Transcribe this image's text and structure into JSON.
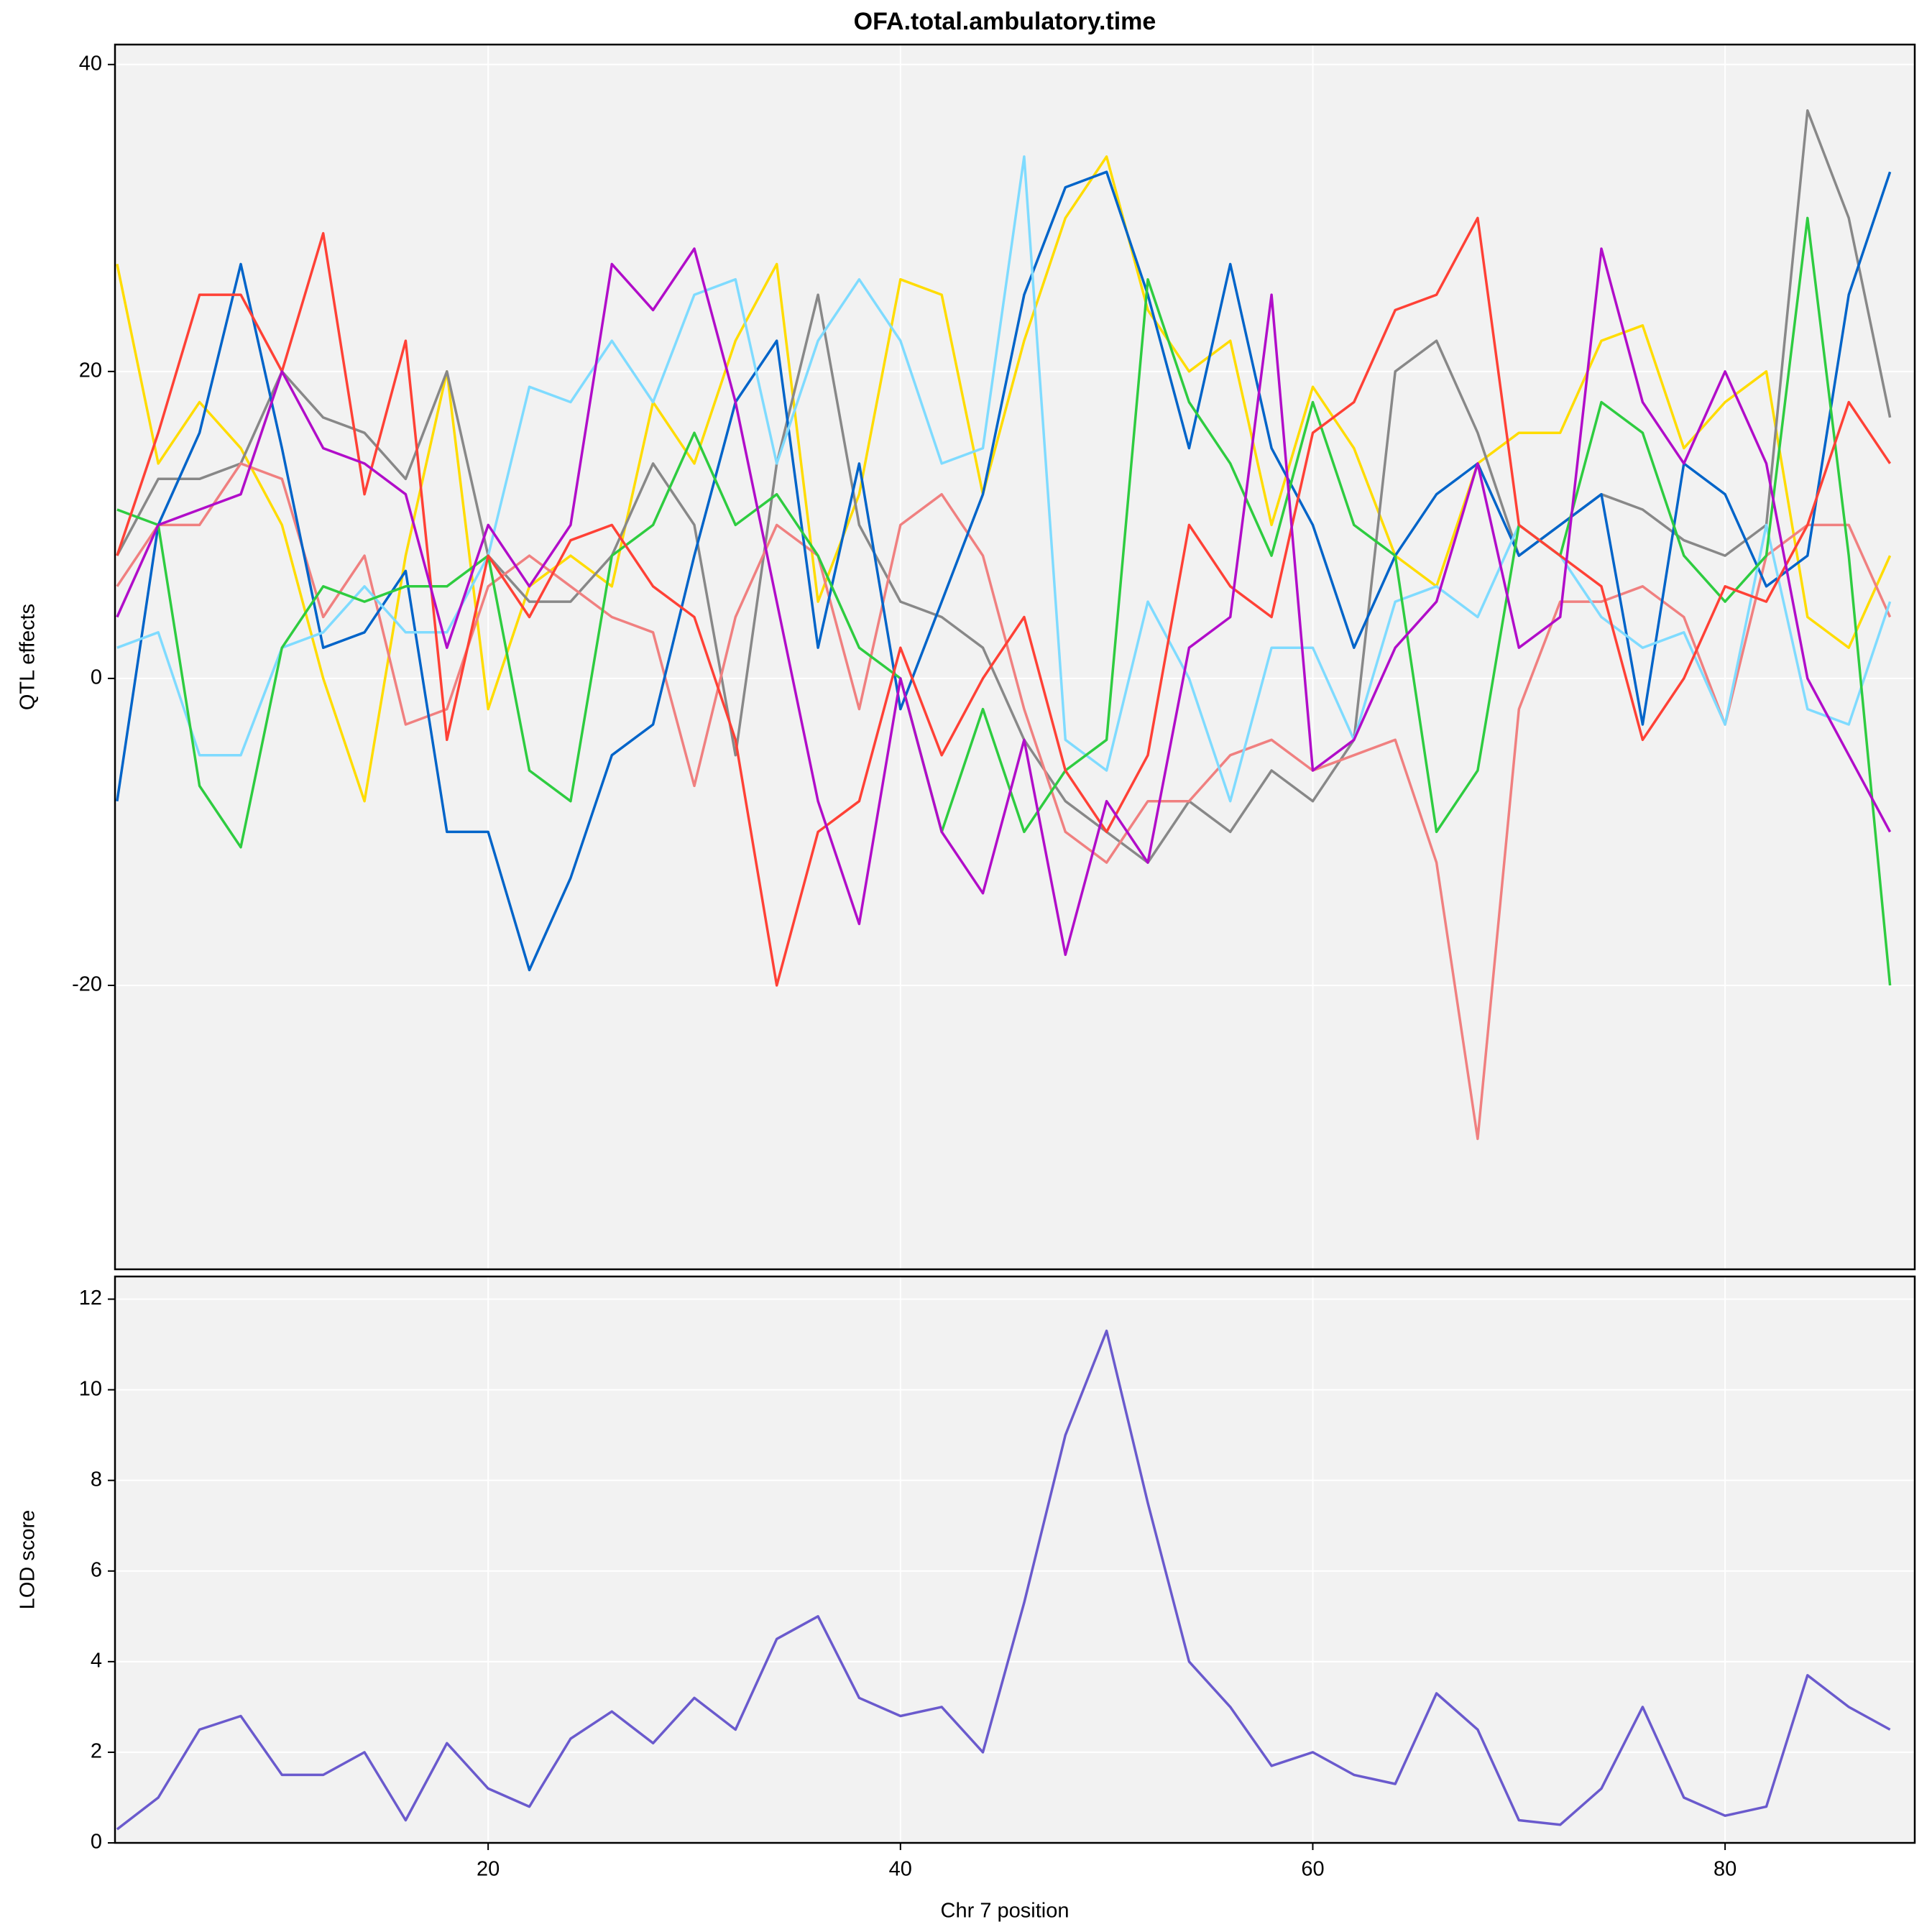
{
  "chart_data": {
    "type": "line",
    "title": "OFA.total.ambulatory.time",
    "xlabel": "Chr 7 position",
    "xlim": [
      1.9,
      89.2
    ],
    "xticks": [
      20,
      40,
      60,
      80
    ],
    "x": [
      2,
      4,
      6,
      8,
      10,
      12,
      14,
      16,
      18,
      20,
      22,
      24,
      26,
      28,
      30,
      32,
      34,
      36,
      38,
      40,
      42,
      44,
      46,
      48,
      50,
      52,
      54,
      56,
      58,
      60,
      62,
      64,
      66,
      68,
      70,
      72,
      74,
      76,
      78,
      80,
      82,
      84,
      86,
      88
    ],
    "grid": true,
    "panels": [
      {
        "ylabel": "QTL effects",
        "ylim": [
          -38.5,
          41.3
        ],
        "yticks": [
          -20,
          0,
          20,
          40
        ],
        "series": [
          {
            "color": "#FFDC00",
            "values": [
              27,
              14,
              18,
              15,
              10,
              0,
              -8,
              8,
              20,
              -2,
              6,
              8,
              6,
              18,
              14,
              22,
              27,
              5,
              12,
              26,
              25,
              12,
              22,
              30,
              34,
              24,
              20,
              22,
              10,
              19,
              15,
              8,
              6,
              14,
              16,
              16,
              22,
              23,
              15,
              18,
              20,
              4,
              2,
              8
            ]
          },
          {
            "color": "#888888",
            "values": [
              8,
              13,
              13,
              14,
              20,
              17,
              16,
              13,
              20,
              8,
              5,
              5,
              8,
              14,
              10,
              -5,
              14,
              25,
              10,
              5,
              4,
              2,
              -4,
              -8,
              -10,
              -12,
              -8,
              -10,
              -6,
              -8,
              -4,
              20,
              22,
              16,
              8,
              10,
              12,
              11,
              9,
              8,
              10,
              37,
              30,
              17
            ]
          },
          {
            "color": "#F08080",
            "values": [
              6,
              10,
              10,
              14,
              13,
              4,
              8,
              -3,
              -2,
              6,
              8,
              6,
              4,
              3,
              -7,
              4,
              10,
              8,
              -2,
              10,
              12,
              8,
              -2,
              -10,
              -12,
              -8,
              -8,
              -5,
              -4,
              -6,
              -5,
              -4,
              -12,
              -30,
              -2,
              5,
              5,
              6,
              4,
              -3,
              8,
              10,
              10,
              4
            ]
          },
          {
            "color": "#0064C9",
            "values": [
              -8,
              10,
              16,
              27,
              15,
              2,
              3,
              7,
              -10,
              -10,
              -19,
              -13,
              -5,
              -3,
              8,
              18,
              22,
              2,
              14,
              -2,
              5,
              12,
              25,
              32,
              33,
              25,
              15,
              27,
              15,
              10,
              2,
              8,
              12,
              14,
              8,
              10,
              12,
              -3,
              14,
              12,
              6,
              8,
              25,
              33
            ]
          },
          {
            "color": "#7FDBFF",
            "values": [
              2,
              3,
              -5,
              -5,
              2,
              3,
              6,
              3,
              3,
              8,
              19,
              18,
              22,
              18,
              25,
              26,
              14,
              22,
              26,
              22,
              14,
              15,
              34,
              -4,
              -6,
              5,
              0,
              -8,
              2,
              2,
              -4,
              5,
              6,
              4,
              10,
              8,
              4,
              2,
              3,
              -3,
              10,
              -2,
              -3,
              5
            ]
          },
          {
            "color": "#2ECC40",
            "values": [
              11,
              10,
              -7,
              -11,
              2,
              6,
              5,
              6,
              6,
              8,
              -6,
              -8,
              8,
              10,
              16,
              10,
              12,
              8,
              2,
              0,
              -10,
              -2,
              -10,
              -6,
              -4,
              26,
              18,
              14,
              8,
              18,
              10,
              8,
              -10,
              -6,
              10,
              8,
              18,
              16,
              8,
              5,
              8,
              30,
              8,
              -20
            ]
          },
          {
            "color": "#FF4136",
            "values": [
              8,
              16,
              25,
              25,
              20,
              29,
              12,
              22,
              -4,
              8,
              4,
              9,
              10,
              6,
              4,
              -4,
              -20,
              -10,
              -8,
              2,
              -5,
              0,
              4,
              -6,
              -10,
              -5,
              10,
              6,
              4,
              16,
              18,
              24,
              25,
              30,
              10,
              8,
              6,
              -4,
              0,
              6,
              5,
              10,
              18,
              14
            ]
          },
          {
            "color": "#B10DC9",
            "values": [
              4,
              10,
              11,
              12,
              20,
              15,
              14,
              12,
              2,
              10,
              6,
              10,
              27,
              24,
              28,
              18,
              5,
              -8,
              -16,
              0,
              -10,
              -14,
              -4,
              -18,
              -8,
              -12,
              2,
              4,
              25,
              -6,
              -4,
              2,
              5,
              14,
              2,
              4,
              28,
              18,
              14,
              20,
              14,
              0,
              -5,
              -10
            ]
          }
        ]
      },
      {
        "ylabel": "LOD score",
        "ylim": [
          0,
          12.5
        ],
        "yticks": [
          0,
          2,
          4,
          6,
          8,
          10,
          12
        ],
        "series": [
          {
            "color": "#6A5ACD",
            "values": [
              0.3,
              1.0,
              2.5,
              2.8,
              1.5,
              1.5,
              2.0,
              0.5,
              2.2,
              1.2,
              0.8,
              2.3,
              2.9,
              2.2,
              3.2,
              2.5,
              4.5,
              5.0,
              3.2,
              2.8,
              3.0,
              2.0,
              5.3,
              9.0,
              11.3,
              7.5,
              4.0,
              3.0,
              1.7,
              2.0,
              1.5,
              1.3,
              3.3,
              2.5,
              0.5,
              0.4,
              1.2,
              3.0,
              1.0,
              0.6,
              0.8,
              3.7,
              3.0,
              2.5
            ]
          }
        ]
      }
    ]
  }
}
